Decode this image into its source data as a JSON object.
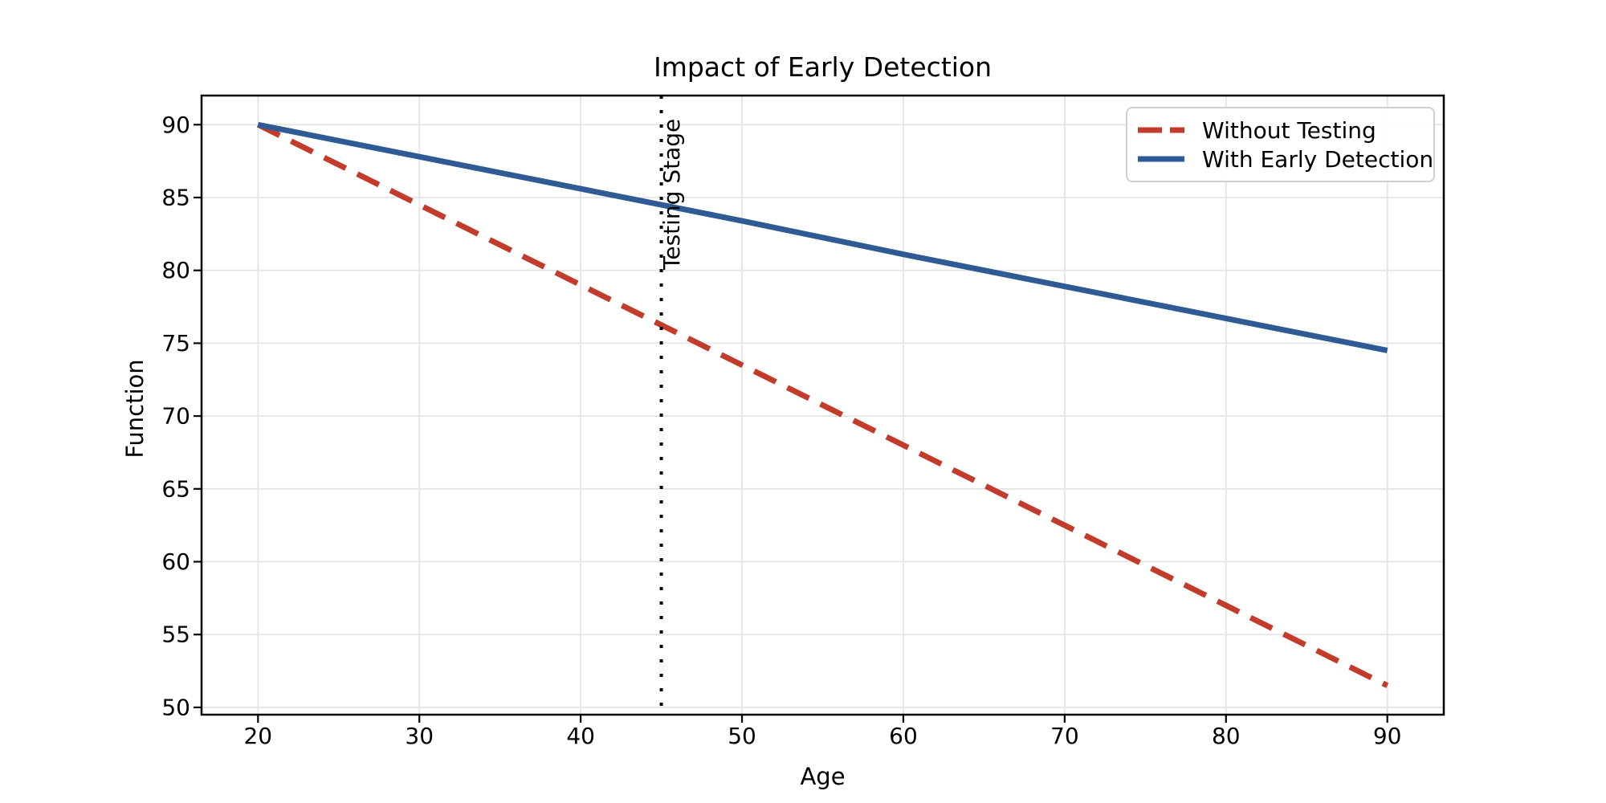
{
  "chart_data": {
    "type": "line",
    "title": "Impact of Early Detection",
    "xlabel": "Age",
    "ylabel": "Function",
    "xlim": [
      16.5,
      93.5
    ],
    "ylim": [
      49.5,
      92
    ],
    "x_ticks": [
      20,
      30,
      40,
      50,
      60,
      70,
      80,
      90
    ],
    "y_ticks": [
      50,
      55,
      60,
      65,
      70,
      75,
      80,
      85,
      90
    ],
    "grid": true,
    "legend_position": "upper right",
    "x": [
      20,
      30,
      40,
      50,
      60,
      70,
      80,
      90
    ],
    "series": [
      {
        "name": "Without Testing",
        "key": "without-testing",
        "color": "#c23b2b",
        "linestyle": "dashed",
        "values": [
          90,
          84.5,
          79,
          73.5,
          68,
          62.5,
          57,
          51.5
        ]
      },
      {
        "name": "With Early Detection",
        "key": "with-early-detection",
        "color": "#2f5b94",
        "linestyle": "solid",
        "values": [
          90,
          87.8,
          85.6,
          83.4,
          81.1,
          78.9,
          76.7,
          74.5
        ]
      }
    ],
    "vline": {
      "x": 45,
      "label": "Testing Stage",
      "color": "#000000",
      "linestyle": "dotted"
    }
  },
  "colors": {
    "grid": "#e4e4e4",
    "spine": "#000000",
    "tick_text": "#000000",
    "legend_border": "#cfcfcf"
  }
}
